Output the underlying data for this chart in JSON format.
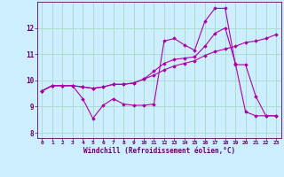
{
  "background_color": "#cceeff",
  "grid_color": "#aaddcc",
  "line_color": "#aa00aa",
  "xlabel": "Windchill (Refroidissement éolien,°C)",
  "xlim": [
    -0.5,
    23.5
  ],
  "ylim": [
    7.8,
    13.0
  ],
  "yticks": [
    8,
    9,
    10,
    11,
    12
  ],
  "xticks": [
    0,
    1,
    2,
    3,
    4,
    5,
    6,
    7,
    8,
    9,
    10,
    11,
    12,
    13,
    14,
    15,
    16,
    17,
    18,
    19,
    20,
    21,
    22,
    23
  ],
  "series": [
    {
      "x": [
        0,
        1,
        2,
        3,
        4,
        5,
        6,
        7,
        8,
        9,
        10,
        11,
        12,
        13,
        14,
        15,
        16,
        17,
        18,
        19,
        20,
        21,
        22,
        23
      ],
      "y": [
        9.6,
        9.8,
        9.8,
        9.8,
        9.3,
        8.55,
        9.05,
        9.3,
        9.1,
        9.05,
        9.05,
        9.1,
        11.5,
        11.6,
        11.35,
        11.15,
        12.25,
        12.75,
        12.75,
        10.6,
        10.6,
        9.4,
        8.65,
        8.65
      ]
    },
    {
      "x": [
        0,
        1,
        2,
        3,
        4,
        5,
        6,
        7,
        8,
        9,
        10,
        11,
        12,
        13,
        14,
        15,
        16,
        17,
        18,
        19,
        20,
        21,
        22,
        23
      ],
      "y": [
        9.6,
        9.8,
        9.8,
        9.8,
        9.75,
        9.7,
        9.75,
        9.85,
        9.85,
        9.9,
        10.05,
        10.2,
        10.4,
        10.55,
        10.65,
        10.75,
        10.95,
        11.1,
        11.2,
        11.3,
        11.45,
        11.5,
        11.6,
        11.75
      ]
    },
    {
      "x": [
        0,
        1,
        2,
        3,
        4,
        5,
        6,
        7,
        8,
        9,
        10,
        11,
        12,
        13,
        14,
        15,
        16,
        17,
        18,
        19,
        20,
        21,
        22,
        23
      ],
      "y": [
        9.6,
        9.8,
        9.8,
        9.8,
        9.75,
        9.7,
        9.75,
        9.85,
        9.85,
        9.9,
        10.05,
        10.35,
        10.65,
        10.8,
        10.85,
        10.9,
        11.3,
        11.8,
        12.0,
        10.65,
        8.8,
        8.65,
        8.65,
        8.65
      ]
    }
  ]
}
